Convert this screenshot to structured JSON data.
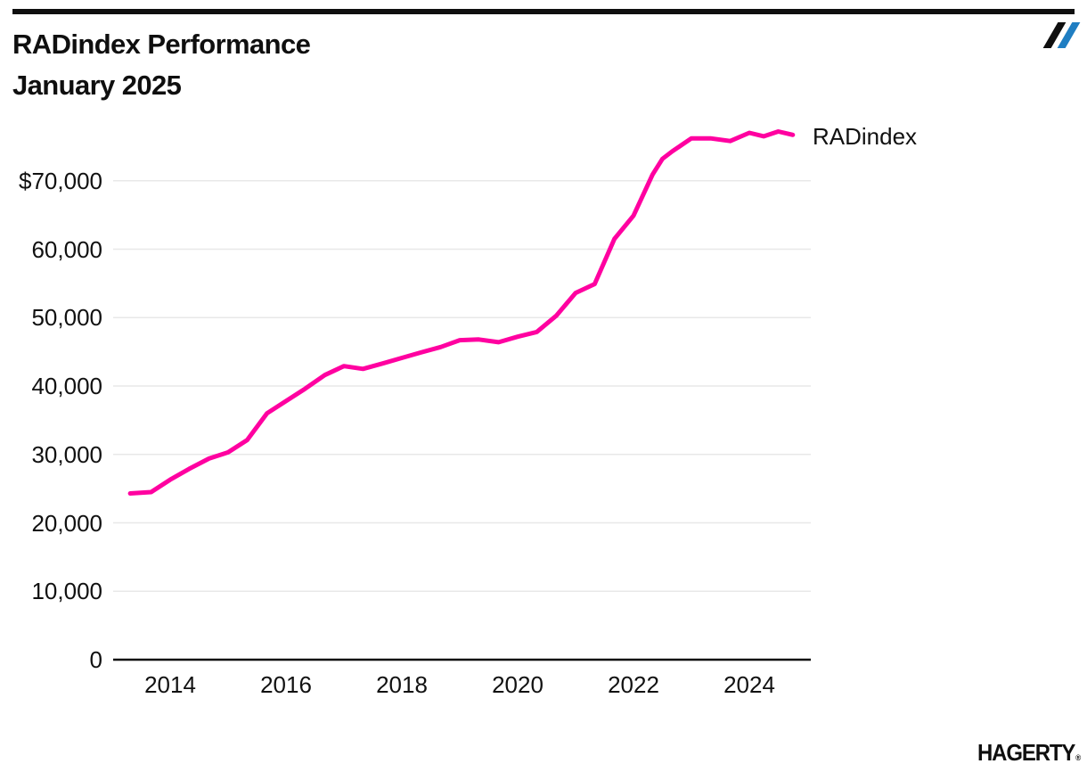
{
  "header": {
    "title_line1": "RADindex Performance",
    "title_line2": "January 2025"
  },
  "colors": {
    "accent_pink": "#FF00A0",
    "logo_blue": "#1F7EC2",
    "ink": "#0F0F0F",
    "gridline": "#E8E8E8"
  },
  "footer": {
    "logo_text": "HAGERTY",
    "reg_mark": "®"
  },
  "chart_data": {
    "type": "line",
    "title": "RADindex Performance January 2025",
    "series_label": "RADindex",
    "line_color": "#FF00A0",
    "grid": "horizontal-only",
    "legend_position": "right-of-line-end",
    "xlabel": "",
    "ylabel": "",
    "x_range": [
      2013.2,
      2025.1
    ],
    "y_range": [
      0,
      77500
    ],
    "x_ticks": [
      {
        "value": 2014,
        "label": "2014"
      },
      {
        "value": 2016,
        "label": "2016"
      },
      {
        "value": 2018,
        "label": "2018"
      },
      {
        "value": 2020,
        "label": "2020"
      },
      {
        "value": 2022,
        "label": "2022"
      },
      {
        "value": 2024,
        "label": "2024"
      }
    ],
    "y_ticks": [
      {
        "value": 0,
        "label": "0"
      },
      {
        "value": 10000,
        "label": "10,000"
      },
      {
        "value": 20000,
        "label": "20,000"
      },
      {
        "value": 30000,
        "label": "30,000"
      },
      {
        "value": 40000,
        "label": "40,000"
      },
      {
        "value": 50000,
        "label": "50,000"
      },
      {
        "value": 60000,
        "label": "60,000"
      },
      {
        "value": 70000,
        "label": "$70,000"
      }
    ],
    "points": [
      [
        2013.31,
        24300
      ],
      [
        2013.67,
        24500
      ],
      [
        2014.0,
        26300
      ],
      [
        2014.33,
        27900
      ],
      [
        2014.67,
        29400
      ],
      [
        2015.0,
        30300
      ],
      [
        2015.33,
        32100
      ],
      [
        2015.67,
        36000
      ],
      [
        2016.0,
        37800
      ],
      [
        2016.33,
        39600
      ],
      [
        2016.67,
        41600
      ],
      [
        2017.0,
        42900
      ],
      [
        2017.33,
        42500
      ],
      [
        2017.67,
        43300
      ],
      [
        2018.0,
        44100
      ],
      [
        2018.33,
        44900
      ],
      [
        2018.67,
        45700
      ],
      [
        2019.0,
        46700
      ],
      [
        2019.33,
        46800
      ],
      [
        2019.67,
        46400
      ],
      [
        2020.0,
        47200
      ],
      [
        2020.33,
        47900
      ],
      [
        2020.67,
        50300
      ],
      [
        2021.0,
        53600
      ],
      [
        2021.33,
        54900
      ],
      [
        2021.67,
        61500
      ],
      [
        2022.0,
        64900
      ],
      [
        2022.33,
        70900
      ],
      [
        2022.5,
        73200
      ],
      [
        2022.67,
        74300
      ],
      [
        2023.0,
        76200
      ],
      [
        2023.33,
        76200
      ],
      [
        2023.67,
        75800
      ],
      [
        2024.0,
        77000
      ],
      [
        2024.25,
        76500
      ],
      [
        2024.5,
        77200
      ],
      [
        2024.75,
        76700
      ]
    ]
  }
}
